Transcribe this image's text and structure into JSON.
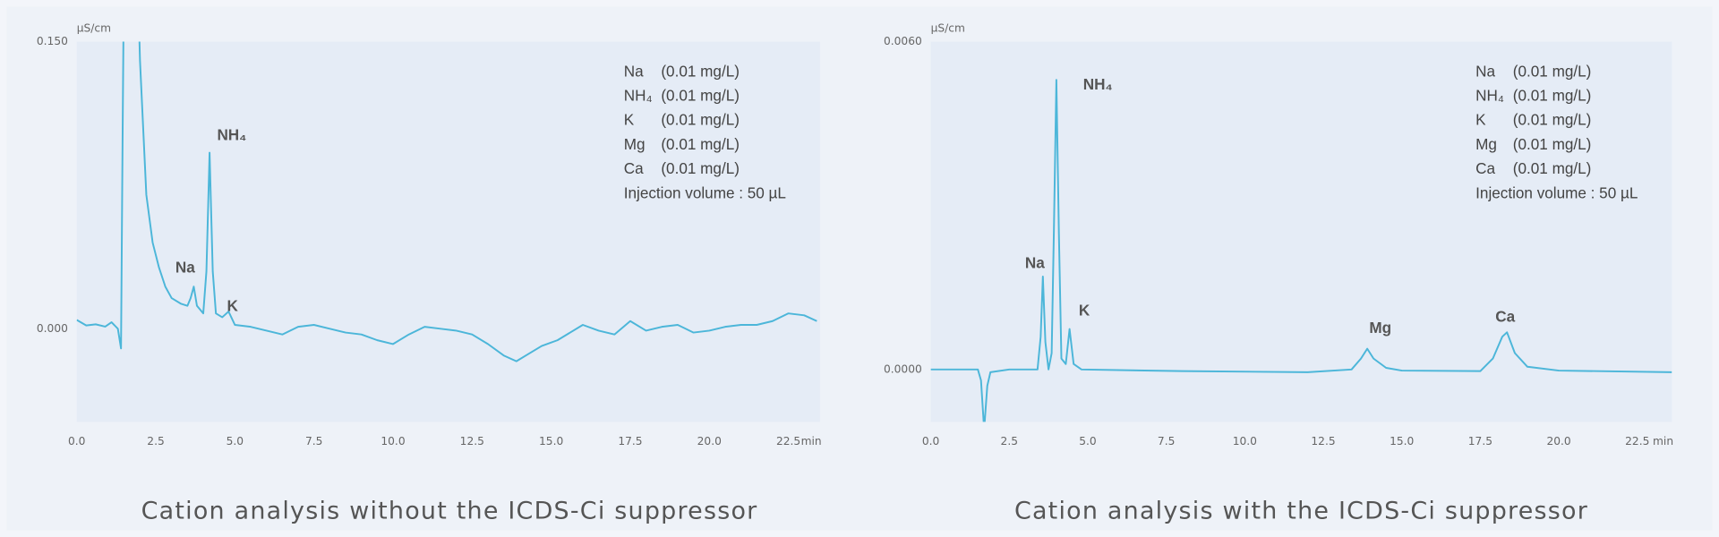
{
  "chart_data": [
    {
      "type": "line",
      "title": "Cation analysis without the ICDS-Ci suppressor",
      "y_unit": "µS/cm",
      "x_unit": "min",
      "color": "#4cb6d9",
      "xlim": [
        0,
        23.5
      ],
      "ylim": [
        -0.0487,
        0.15
      ],
      "xticks": [
        {
          "value": 0,
          "label": "0.0"
        },
        2.5,
        {
          "value": 5,
          "label": "5.0"
        },
        7.5,
        {
          "value": 10,
          "label": "10.0"
        },
        12.5,
        {
          "value": 15,
          "label": "15.0"
        },
        17.5,
        {
          "value": 20,
          "label": "20.0"
        },
        22.5
      ],
      "yticks": [
        {
          "value": 0,
          "label": "0.000"
        },
        {
          "value": 0.15,
          "label": "0.150"
        }
      ],
      "x": [
        0,
        0.3,
        0.6,
        0.9,
        1.1,
        1.3,
        1.4,
        1.45,
        1.5,
        1.9,
        2.0,
        2.2,
        2.4,
        2.6,
        2.8,
        3.0,
        3.3,
        3.5,
        3.6,
        3.7,
        3.8,
        4.0,
        4.1,
        4.2,
        4.3,
        4.4,
        4.6,
        4.8,
        5.0,
        5.5,
        6.0,
        6.5,
        7.0,
        7.5,
        8.0,
        8.5,
        9.0,
        9.5,
        10.0,
        10.5,
        11.0,
        11.5,
        12.0,
        12.5,
        13.0,
        13.5,
        13.9,
        14.3,
        14.7,
        15.2,
        15.6,
        16.0,
        16.5,
        17.0,
        17.5,
        18.0,
        18.5,
        19.0,
        19.5,
        20.0,
        20.5,
        21.0,
        21.5,
        22.0,
        22.5,
        23.0,
        23.4
      ],
      "values": [
        0.0046,
        0.0017,
        0.0023,
        0.0011,
        0.0034,
        0,
        -0.0103,
        0.1,
        0.2,
        0.2,
        0.14,
        0.07,
        0.045,
        0.032,
        0.022,
        0.016,
        0.013,
        0.012,
        0.016,
        0.022,
        0.012,
        0.008,
        0.03,
        0.092,
        0.03,
        0.008,
        0.006,
        0.009,
        0.002,
        0.001,
        -0.001,
        -0.003,
        0.001,
        0.002,
        0,
        -0.002,
        -0.003,
        -0.006,
        -0.008,
        -0.003,
        0.001,
        0,
        -0.001,
        -0.003,
        -0.008,
        -0.014,
        -0.017,
        -0.013,
        -0.009,
        -0.006,
        -0.002,
        0.002,
        -0.001,
        -0.003,
        0.004,
        -0.001,
        0.001,
        0.002,
        -0.002,
        -0.001,
        0.001,
        0.002,
        0.002,
        0.004,
        0.008,
        0.007,
        0.004
      ],
      "peak_labels": [
        "Na",
        "NH₄",
        "K"
      ],
      "legend": [
        {
          "ion": "Na",
          "conc": "(0.01 mg/L)"
        },
        {
          "ion": "NH₄",
          "conc": "(0.01 mg/L)"
        },
        {
          "ion": "K",
          "conc": "(0.01 mg/L)"
        },
        {
          "ion": "Mg",
          "conc": "(0.01 mg/L)"
        },
        {
          "ion": "Ca",
          "conc": "(0.01 mg/L)"
        }
      ],
      "note": "Injection volume : 50 µL"
    },
    {
      "type": "line",
      "title": "Cation analysis with the ICDS-Ci suppressor",
      "y_unit": "µS/cm",
      "x_unit": "min",
      "color": "#4cb6d9",
      "xlim": [
        0,
        23.6
      ],
      "ylim": [
        -0.00096,
        0.006
      ],
      "xticks": [
        {
          "value": 0,
          "label": "0.0"
        },
        2.5,
        {
          "value": 5,
          "label": "5.0"
        },
        7.5,
        {
          "value": 10,
          "label": "10.0"
        },
        12.5,
        {
          "value": 15,
          "label": "15.0"
        },
        17.5,
        {
          "value": 20,
          "label": "20.0"
        },
        22.5
      ],
      "yticks": [
        {
          "value": 0,
          "label": "0.0000"
        },
        {
          "value": 0.006,
          "label": "0.0060"
        }
      ],
      "x": [
        0,
        1.5,
        1.6,
        1.7,
        1.8,
        1.9,
        2.5,
        3.4,
        3.5,
        3.57,
        3.65,
        3.75,
        3.85,
        3.92,
        4.0,
        4.08,
        4.16,
        4.3,
        4.42,
        4.55,
        4.8,
        8,
        12,
        13.4,
        13.7,
        13.9,
        14.1,
        14.5,
        15,
        17.5,
        17.9,
        18.2,
        18.35,
        18.6,
        19,
        20,
        23.6
      ],
      "values": [
        0,
        0,
        -0.0002,
        -0.0011,
        -0.0003,
        -5e-05,
        0,
        0,
        0.0006,
        0.0017,
        0.0005,
        0,
        0.0003,
        0.0025,
        0.0053,
        0.0025,
        0.0002,
        0.0001,
        0.00074,
        0.0001,
        0,
        -3e-05,
        -5e-05,
        0,
        0.0002,
        0.00038,
        0.0002,
        3e-05,
        -2e-05,
        -3e-05,
        0.0002,
        0.0006,
        0.00068,
        0.0003,
        5e-05,
        -2e-05,
        -5e-05
      ],
      "peak_labels": [
        "Na",
        "NH₄",
        "K",
        "Mg",
        "Ca"
      ],
      "legend": [
        {
          "ion": "Na",
          "conc": "(0.01 mg/L)"
        },
        {
          "ion": "NH₄",
          "conc": "(0.01 mg/L)"
        },
        {
          "ion": "K",
          "conc": "(0.01 mg/L)"
        },
        {
          "ion": "Mg",
          "conc": "(0.01 mg/L)"
        },
        {
          "ion": "Ca",
          "conc": "(0.01 mg/L)"
        }
      ],
      "note": "Injection volume : 50 µL"
    }
  ]
}
